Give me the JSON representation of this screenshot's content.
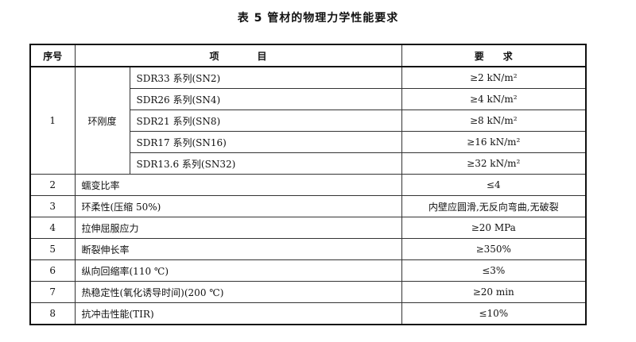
{
  "title": "表 5   管材的物理力学性能要求",
  "headers": {
    "no": "序号",
    "item": "项　　　　目",
    "req": "要　　求"
  },
  "ring": {
    "no": "1",
    "label": "环刚度",
    "rows": [
      {
        "item": "SDR33 系列(SN2)",
        "req": "≥2 kN/m²"
      },
      {
        "item": "SDR26 系列(SN4)",
        "req": "≥4 kN/m²"
      },
      {
        "item": "SDR21 系列(SN8)",
        "req": "≥8 kN/m²"
      },
      {
        "item": "SDR17 系列(SN16)",
        "req": "≥16 kN/m²"
      },
      {
        "item": "SDR13.6 系列(SN32)",
        "req": "≥32 kN/m²"
      }
    ]
  },
  "rows": [
    {
      "no": "2",
      "item": "蠕变比率",
      "req": "≤4"
    },
    {
      "no": "3",
      "item": "环柔性(压缩 50%)",
      "req": "内壁应圆滑,无反向弯曲,无破裂"
    },
    {
      "no": "4",
      "item": "拉伸屈服应力",
      "req": "≥20 MPa"
    },
    {
      "no": "5",
      "item": "断裂伸长率",
      "req": "≥350%"
    },
    {
      "no": "6",
      "item": "纵向回缩率(110 ℃)",
      "req": "≤3%"
    },
    {
      "no": "7",
      "item": "热稳定性(氧化诱导时间)(200 ℃)",
      "req": "≥20 min"
    },
    {
      "no": "8",
      "item": "抗冲击性能(TIR)",
      "req": "≤10%"
    }
  ]
}
